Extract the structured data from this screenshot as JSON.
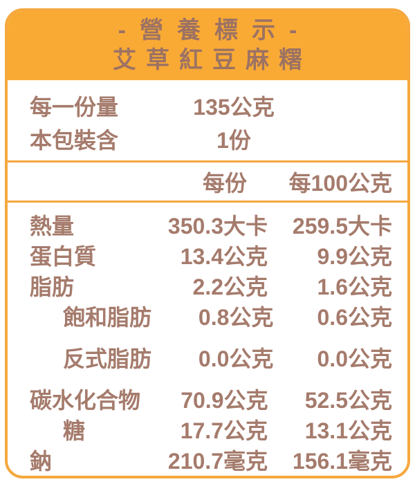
{
  "label": {
    "title": "-營養標示-",
    "product": "艾草紅豆麻糬",
    "serving_info": [
      {
        "name": "每一份量",
        "value": "135公克"
      },
      {
        "name": "本包裝含",
        "value": "1份"
      }
    ],
    "columns": {
      "per_serving": "每份",
      "per_100g": "每100公克"
    },
    "rows": [
      {
        "name": "熱量",
        "per_serving": "350.3大卡",
        "per_100g": "259.5大卡"
      },
      {
        "name": "蛋白質",
        "per_serving": "13.4公克",
        "per_100g": "9.9公克"
      },
      {
        "name": "脂肪",
        "per_serving": "2.2公克",
        "per_100g": "1.6公克"
      },
      {
        "name": "飽和脂肪",
        "per_serving": "0.8公克",
        "per_100g": "0.6公克"
      },
      {
        "name": "反式脂肪",
        "per_serving": "0.0公克",
        "per_100g": "0.0公克"
      },
      {
        "name": "碳水化合物",
        "per_serving": "70.9公克",
        "per_100g": "52.5公克"
      },
      {
        "name": "糖",
        "per_serving": "17.7公克",
        "per_100g": "13.1公克"
      },
      {
        "name": "鈉",
        "per_serving": "210.7毫克",
        "per_100g": "156.1毫克"
      }
    ]
  },
  "colors": {
    "accent_orange": "#F9AA35",
    "border_orange": "#F5A83E",
    "text_brown": "#A57B6C",
    "header_text_brown": "#9C7263",
    "background": "#FFFFFF"
  }
}
